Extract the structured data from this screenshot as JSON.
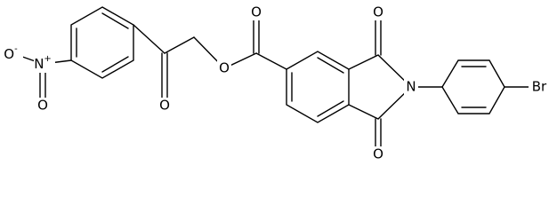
{
  "atoms": [
    {
      "label": "O",
      "charge": "-"
    },
    {
      "label": "N",
      "charge": "+"
    },
    {
      "label": "O"
    },
    {
      "label": "O"
    },
    {
      "label": "O"
    },
    {
      "label": "O"
    },
    {
      "label": "O"
    },
    {
      "label": "N"
    },
    {
      "label": "O"
    },
    {
      "label": "Br"
    }
  ]
}
